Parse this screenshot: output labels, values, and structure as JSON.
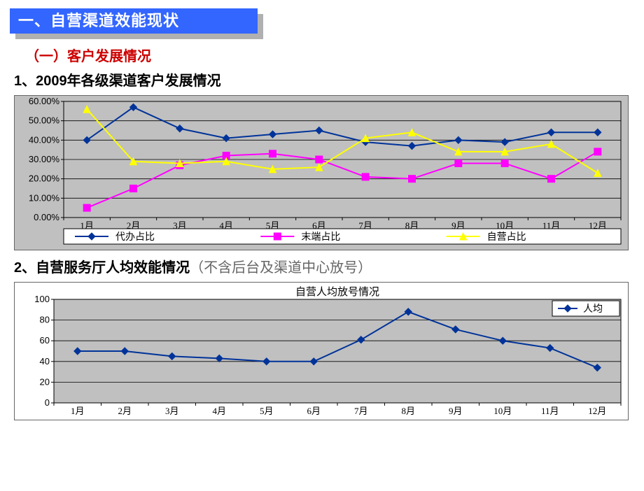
{
  "banner_title": "一、自营渠道效能现状",
  "subhead_red": "（一）客户发展情况",
  "subhead1": "1、2009年各级渠道客户发展情况",
  "subhead2_main": "2、自营服务厅人均效能情况",
  "subhead2_note": "（不含后台及渠道中心放号）",
  "chart1": {
    "type": "line",
    "categories": [
      "1月",
      "2月",
      "3月",
      "4月",
      "5月",
      "6月",
      "7月",
      "8月",
      "9月",
      "10月",
      "11月",
      "12月"
    ],
    "ylabels": [
      "0.00%",
      "10.00%",
      "20.00%",
      "30.00%",
      "40.00%",
      "50.00%",
      "60.00%"
    ],
    "ylim": [
      0,
      60
    ],
    "ytick_step": 10,
    "series": [
      {
        "name": "代办占比",
        "color": "#003399",
        "marker": "diamond",
        "values": [
          40,
          57,
          46,
          41,
          43,
          45,
          39,
          37,
          40,
          39,
          44,
          44
        ]
      },
      {
        "name": "末端占比",
        "color": "#ff00ff",
        "marker": "square",
        "values": [
          5,
          15,
          27,
          32,
          33,
          30,
          21,
          20,
          28,
          28,
          20,
          34
        ]
      },
      {
        "name": "自营占比",
        "color": "#ffff00",
        "marker": "triangle",
        "values": [
          56,
          29,
          28,
          29,
          25,
          26,
          41,
          44,
          34,
          34,
          38,
          23
        ]
      }
    ],
    "plot_bg": "#c0c0c0",
    "panel_bg": "#c0c0c0",
    "grid_color": "#000000",
    "axis_color": "#000000",
    "label_fontsize": 13,
    "legend_bg": "#ffffff",
    "legend_border": "#000000"
  },
  "chart2": {
    "type": "line",
    "title": "自营人均放号情况",
    "categories": [
      "1月",
      "2月",
      "3月",
      "4月",
      "5月",
      "6月",
      "7月",
      "8月",
      "9月",
      "10月",
      "11月",
      "12月"
    ],
    "ylabels": [
      "0",
      "20",
      "40",
      "60",
      "80",
      "100"
    ],
    "ylim": [
      0,
      100
    ],
    "ytick_step": 20,
    "series": [
      {
        "name": "人均",
        "color": "#003399",
        "marker": "diamond",
        "values": [
          50,
          50,
          45,
          43,
          40,
          40,
          61,
          88,
          71,
          60,
          53,
          34
        ]
      }
    ],
    "plot_bg": "#c0c0c0",
    "panel_bg": "#ffffff",
    "grid_color": "#000000",
    "axis_color": "#000000",
    "label_fontsize": 13,
    "legend_bg": "#ffffff",
    "legend_border": "#000000"
  }
}
